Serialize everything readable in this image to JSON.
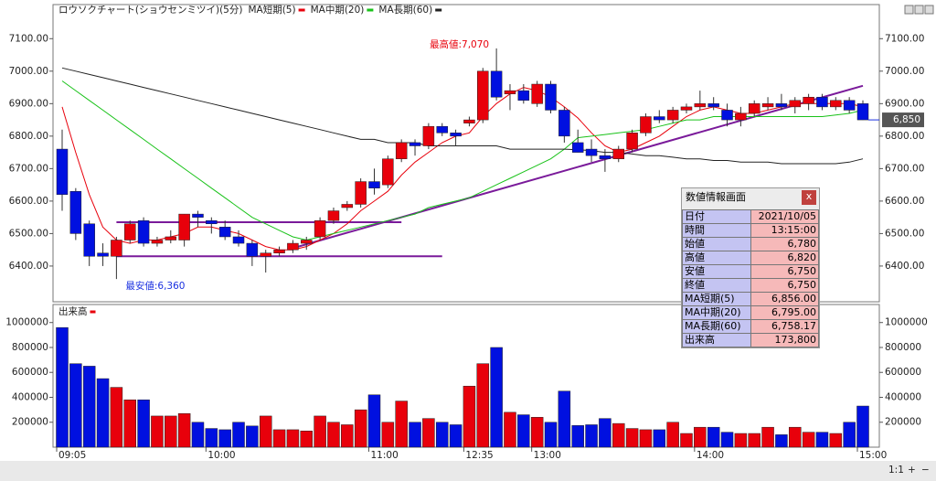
{
  "chart_data": [
    {
      "type": "candlestick",
      "title": "ロウソクチャート(ショウセンミツイ)(5分)",
      "categories": [
        "09:05",
        null,
        null,
        null,
        null,
        null,
        null,
        null,
        null,
        null,
        null,
        "10:00",
        null,
        null,
        null,
        null,
        null,
        null,
        null,
        null,
        null,
        null,
        null,
        "11:00",
        null,
        null,
        null,
        null,
        null,
        null,
        "12:35",
        null,
        null,
        null,
        null,
        "13:00",
        null,
        null,
        null,
        null,
        null,
        null,
        null,
        null,
        null,
        null,
        null,
        "14:00",
        null,
        null,
        null,
        null,
        null,
        null,
        null,
        null,
        null,
        null,
        null,
        "15:00"
      ],
      "up_color": "#e8000b",
      "down_color": "#0010e0",
      "ohlc": [
        [
          6760,
          6820,
          6570,
          6620
        ],
        [
          6630,
          6640,
          6480,
          6500
        ],
        [
          6530,
          6540,
          6400,
          6430
        ],
        [
          6440,
          6470,
          6400,
          6430
        ],
        [
          6430,
          6490,
          6360,
          6480
        ],
        [
          6480,
          6540,
          6470,
          6530
        ],
        [
          6540,
          6550,
          6460,
          6470
        ],
        [
          6470,
          6490,
          6460,
          6480
        ],
        [
          6480,
          6510,
          6470,
          6490
        ],
        [
          6480,
          6560,
          6460,
          6560
        ],
        [
          6560,
          6570,
          6520,
          6550
        ],
        [
          6540,
          6550,
          6500,
          6530
        ],
        [
          6520,
          6540,
          6480,
          6490
        ],
        [
          6490,
          6510,
          6460,
          6470
        ],
        [
          6470,
          6480,
          6400,
          6430
        ],
        [
          6430,
          6450,
          6380,
          6440
        ],
        [
          6440,
          6460,
          6430,
          6450
        ],
        [
          6450,
          6480,
          6440,
          6470
        ],
        [
          6470,
          6490,
          6450,
          6480
        ],
        [
          6490,
          6550,
          6480,
          6540
        ],
        [
          6540,
          6580,
          6530,
          6570
        ],
        [
          6580,
          6600,
          6570,
          6590
        ],
        [
          6590,
          6670,
          6580,
          6660
        ],
        [
          6660,
          6700,
          6620,
          6640
        ],
        [
          6650,
          6740,
          6640,
          6730
        ],
        [
          6730,
          6790,
          6720,
          6780
        ],
        [
          6780,
          6790,
          6740,
          6770
        ],
        [
          6770,
          6840,
          6760,
          6830
        ],
        [
          6830,
          6840,
          6800,
          6810
        ],
        [
          6810,
          6820,
          6770,
          6800
        ],
        [
          6840,
          6860,
          6830,
          6850
        ],
        [
          6850,
          7010,
          6840,
          7000
        ],
        [
          7000,
          7070,
          6910,
          6920
        ],
        [
          6930,
          6960,
          6880,
          6940
        ],
        [
          6940,
          6960,
          6900,
          6910
        ],
        [
          6900,
          6970,
          6890,
          6960
        ],
        [
          6960,
          6970,
          6870,
          6880
        ],
        [
          6880,
          6890,
          6780,
          6800
        ],
        [
          6780,
          6820,
          6750,
          6750
        ],
        [
          6760,
          6790,
          6720,
          6740
        ],
        [
          6740,
          6760,
          6690,
          6730
        ],
        [
          6730,
          6770,
          6720,
          6760
        ],
        [
          6760,
          6820,
          6750,
          6810
        ],
        [
          6810,
          6870,
          6800,
          6860
        ],
        [
          6860,
          6880,
          6840,
          6850
        ],
        [
          6850,
          6890,
          6840,
          6880
        ],
        [
          6880,
          6900,
          6870,
          6890
        ],
        [
          6890,
          6940,
          6880,
          6900
        ],
        [
          6900,
          6920,
          6880,
          6890
        ],
        [
          6880,
          6900,
          6830,
          6850
        ],
        [
          6850,
          6890,
          6830,
          6870
        ],
        [
          6870,
          6910,
          6860,
          6900
        ],
        [
          6890,
          6920,
          6880,
          6900
        ],
        [
          6900,
          6930,
          6880,
          6890
        ],
        [
          6890,
          6920,
          6870,
          6910
        ],
        [
          6900,
          6930,
          6880,
          6920
        ],
        [
          6920,
          6930,
          6880,
          6890
        ],
        [
          6890,
          6920,
          6880,
          6910
        ],
        [
          6910,
          6920,
          6870,
          6880
        ],
        [
          6900,
          6910,
          6850,
          6850
        ]
      ],
      "series": [
        {
          "name": "MA短期(5)",
          "color": "#e8000b",
          "values": [
            6890,
            6750,
            6620,
            6520,
            6480,
            6470,
            6480,
            6480,
            6490,
            6500,
            6520,
            6520,
            6510,
            6500,
            6480,
            6460,
            6450,
            6450,
            6460,
            6480,
            6500,
            6530,
            6570,
            6600,
            6630,
            6680,
            6720,
            6750,
            6780,
            6800,
            6810,
            6860,
            6900,
            6930,
            6950,
            6940,
            6920,
            6890,
            6856,
            6810,
            6770,
            6750,
            6760,
            6780,
            6800,
            6830,
            6860,
            6880,
            6890,
            6880,
            6870,
            6870,
            6880,
            6890,
            6900,
            6900,
            6900,
            6900,
            6900,
            6890
          ]
        },
        {
          "name": "MA中期(20)",
          "color": "#19c219",
          "values": [
            6970,
            6940,
            6910,
            6880,
            6850,
            6820,
            6790,
            6760,
            6730,
            6700,
            6670,
            6640,
            6610,
            6580,
            6550,
            6530,
            6510,
            6490,
            6480,
            6490,
            6500,
            6510,
            6520,
            6530,
            6540,
            6550,
            6560,
            6580,
            6590,
            6600,
            6610,
            6630,
            6650,
            6670,
            6690,
            6710,
            6730,
            6760,
            6795,
            6800,
            6805,
            6810,
            6815,
            6820,
            6830,
            6840,
            6850,
            6850,
            6860,
            6860,
            6860,
            6860,
            6860,
            6860,
            6860,
            6860,
            6860,
            6865,
            6870,
            6880
          ]
        },
        {
          "name": "MA長期(60)",
          "color": "#222222",
          "values": [
            7010,
            7000,
            6990,
            6980,
            6970,
            6960,
            6950,
            6940,
            6930,
            6920,
            6910,
            6900,
            6890,
            6880,
            6870,
            6860,
            6850,
            6840,
            6830,
            6820,
            6810,
            6800,
            6790,
            6790,
            6780,
            6780,
            6780,
            6770,
            6770,
            6770,
            6770,
            6770,
            6770,
            6760,
            6760,
            6760,
            6760,
            6760,
            6758.17,
            6755,
            6750,
            6750,
            6745,
            6740,
            6740,
            6735,
            6730,
            6730,
            6725,
            6725,
            6720,
            6720,
            6720,
            6715,
            6715,
            6715,
            6715,
            6715,
            6720,
            6730
          ]
        }
      ],
      "trendlines": [
        {
          "from": [
            4,
            6535
          ],
          "to": [
            25,
            6535
          ]
        },
        {
          "from": [
            4,
            6430
          ],
          "to": [
            28,
            6430
          ]
        },
        {
          "from": [
            17,
            6455
          ],
          "to": [
            59,
            6955
          ]
        }
      ],
      "trendline_color": "#7a1a9a",
      "ylim": [
        6290,
        7205
      ],
      "yticks": [
        {
          "value": 6400,
          "label": "6400.00"
        },
        {
          "value": 6500,
          "label": "6500.00"
        },
        {
          "value": 6600,
          "label": "6600.00"
        },
        {
          "value": 6700,
          "label": "6700.00"
        },
        {
          "value": 6800,
          "label": "6800.00"
        },
        {
          "value": 6900,
          "label": "6900.00"
        },
        {
          "value": 7000,
          "label": "7000.00"
        },
        {
          "value": 7100,
          "label": "7100.00"
        }
      ],
      "grid": false,
      "annotations": {
        "high": "最高値:7,070",
        "low": "最安値:6,360",
        "last": "6,850"
      }
    },
    {
      "type": "bar",
      "name": "出来高",
      "color": "#e8000b",
      "values": [
        960000,
        670000,
        650000,
        550000,
        480000,
        380000,
        380000,
        250000,
        250000,
        270000,
        200000,
        150000,
        140000,
        200000,
        170000,
        250000,
        140000,
        140000,
        130000,
        250000,
        200000,
        180000,
        300000,
        420000,
        200000,
        370000,
        200000,
        230000,
        200000,
        180000,
        490000,
        670000,
        800000,
        280000,
        260000,
        240000,
        200000,
        450000,
        173800,
        180000,
        230000,
        190000,
        150000,
        140000,
        140000,
        200000,
        110000,
        160000,
        160000,
        120000,
        110000,
        110000,
        160000,
        100000,
        160000,
        120000,
        120000,
        110000,
        200000,
        330000
      ],
      "ylim": [
        0,
        1130000
      ],
      "yticks": [
        200000,
        400000,
        600000,
        800000,
        1000000
      ]
    }
  ],
  "info_panel": {
    "title": "数値情報画面",
    "close": "x",
    "rows": [
      [
        "日付",
        "2021/10/05"
      ],
      [
        "時間",
        "13:15:00"
      ],
      [
        "始値",
        "6,780"
      ],
      [
        "高値",
        "6,820"
      ],
      [
        "安値",
        "6,750"
      ],
      [
        "終値",
        "6,750"
      ],
      [
        "MA短期(5)",
        "6,856.00"
      ],
      [
        "MA中期(20)",
        "6,795.00"
      ],
      [
        "MA長期(60)",
        "6,758.17"
      ],
      [
        "出来高",
        "173,800"
      ]
    ]
  },
  "toolbar": {
    "zoom": "1:1",
    "plus": "+",
    "minus": "−"
  }
}
